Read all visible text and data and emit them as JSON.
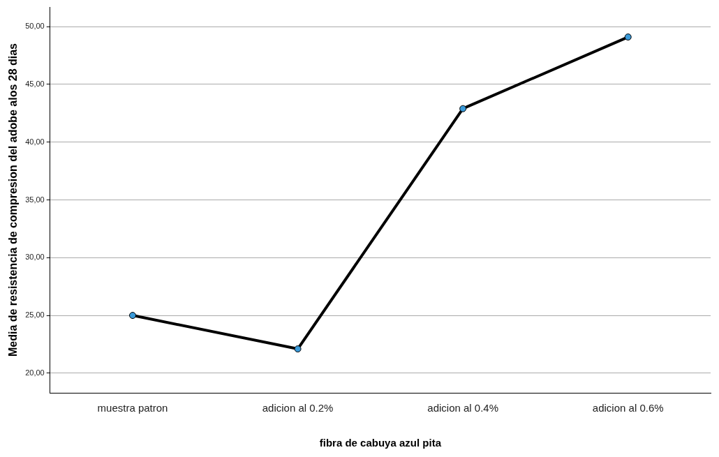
{
  "chart_data": {
    "type": "line",
    "xlabel": "fibra de cabuya azul pita",
    "ylabel": "Media de resistencia de compresion del adobe alos 28 dias",
    "categories": [
      "muestra patron",
      "adicion al 0.2%",
      "adicion al 0.4%",
      "adicion al 0.6%"
    ],
    "series": [
      {
        "color": "#000000",
        "values": [
          25.0,
          22.1,
          42.9,
          49.1
        ]
      }
    ],
    "marker": "circle",
    "line_style": "solid",
    "grid": "y",
    "legend": false,
    "ylim": [
      18.3,
      51.7
    ],
    "yticks": [
      {
        "value": 20,
        "label": "20,00"
      },
      {
        "value": 25,
        "label": "25,00"
      },
      {
        "value": 30,
        "label": "30,00"
      },
      {
        "value": 35,
        "label": "35,00"
      },
      {
        "value": 40,
        "label": "40,00"
      },
      {
        "value": 45,
        "label": "45,00"
      },
      {
        "value": 50,
        "label": "50,00"
      }
    ]
  }
}
